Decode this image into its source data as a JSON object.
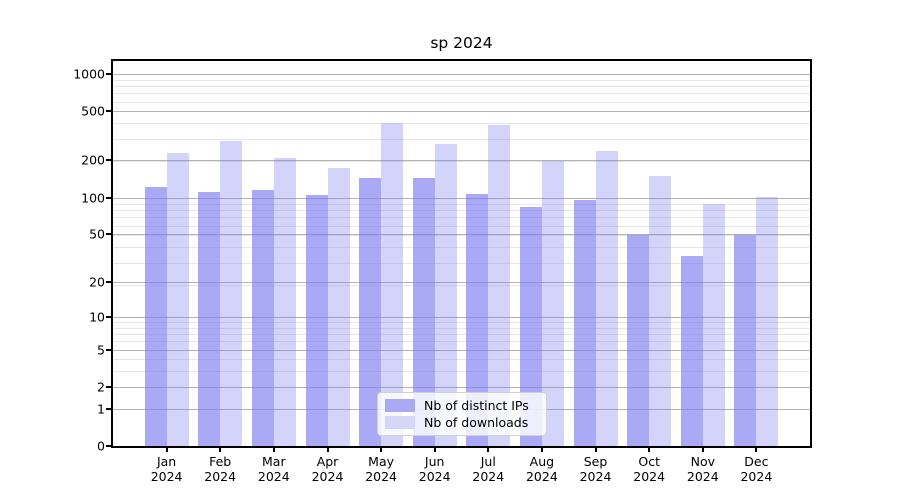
{
  "chart_data": {
    "type": "bar",
    "title": "sp 2024",
    "x_year": "2024",
    "categories": [
      "Jan",
      "Feb",
      "Mar",
      "Apr",
      "May",
      "Jun",
      "Jul",
      "Aug",
      "Sep",
      "Oct",
      "Nov",
      "Dec"
    ],
    "series": [
      {
        "key": "distinct-ips",
        "name": "Nb of distinct IPs",
        "color": "#a9a9f5",
        "fill": "rgba(124,124,240,0.66)",
        "values": [
          122,
          110,
          115,
          104,
          143,
          143,
          107,
          83,
          95,
          49,
          33,
          49
        ]
      },
      {
        "key": "downloads",
        "name": "Nb of downloads",
        "color": "#d6d6f9",
        "fill": "rgba(124,124,240,0.33)",
        "values": [
          231,
          288,
          210,
          174,
          404,
          270,
          389,
          197,
          237,
          150,
          88,
          101
        ]
      }
    ],
    "y_ticks": [
      0,
      1,
      2,
      5,
      10,
      20,
      50,
      100,
      200,
      500,
      1000
    ],
    "y_scale": "log1p",
    "ylim": [
      0,
      1340
    ],
    "grid": true,
    "legend_position": "lower center inside"
  }
}
